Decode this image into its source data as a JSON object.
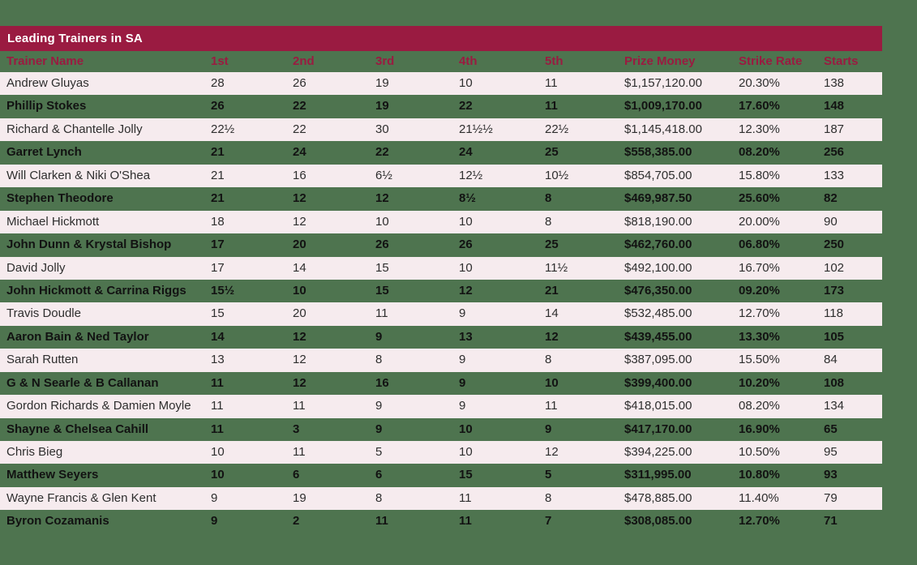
{
  "colors": {
    "page_background": "#4E744F",
    "accent_maroon": "#9A1B41",
    "row_light_pink": "#F6EBEE",
    "title_text": "#FFFFFF",
    "body_text": "#2E2E2E"
  },
  "table": {
    "title": "Leading Trainers in SA",
    "columns": [
      "Trainer Name",
      "1st",
      "2nd",
      "3rd",
      "4th",
      "5th",
      "Prize Money",
      "Strike Rate",
      "Starts"
    ],
    "rows": [
      [
        "Andrew Gluyas",
        "28",
        "26",
        "19",
        "10",
        "11",
        "$1,157,120.00",
        "20.30%",
        "138"
      ],
      [
        "Phillip Stokes",
        "26",
        "22",
        "19",
        "22",
        "11",
        "$1,009,170.00",
        "17.60%",
        "148"
      ],
      [
        "Richard & Chantelle Jolly",
        "22½",
        "22",
        "30",
        "21½½",
        "22½",
        "$1,145,418.00",
        "12.30%",
        "187"
      ],
      [
        "Garret Lynch",
        "21",
        "24",
        "22",
        "24",
        "25",
        "$558,385.00",
        "08.20%",
        "256"
      ],
      [
        "Will Clarken & Niki O'Shea",
        "21",
        "16",
        "6½",
        "12½",
        "10½",
        "$854,705.00",
        "15.80%",
        "133"
      ],
      [
        "Stephen Theodore",
        "21",
        "12",
        "12",
        "8½",
        "8",
        "$469,987.50",
        "25.60%",
        "82"
      ],
      [
        "Michael Hickmott",
        "18",
        "12",
        "10",
        "10",
        "8",
        "$818,190.00",
        "20.00%",
        "90"
      ],
      [
        "John Dunn & Krystal Bishop",
        "17",
        "20",
        "26",
        "26",
        "25",
        "$462,760.00",
        "06.80%",
        "250"
      ],
      [
        "David Jolly",
        "17",
        "14",
        "15",
        "10",
        "11½",
        "$492,100.00",
        "16.70%",
        "102"
      ],
      [
        "John Hickmott & Carrina Riggs",
        "15½",
        "10",
        "15",
        "12",
        "21",
        "$476,350.00",
        "09.20%",
        "173"
      ],
      [
        "Travis Doudle",
        "15",
        "20",
        "11",
        "9",
        "14",
        "$532,485.00",
        "12.70%",
        "118"
      ],
      [
        "Aaron Bain & Ned Taylor",
        "14",
        "12",
        "9",
        "13",
        "12",
        "$439,455.00",
        "13.30%",
        "105"
      ],
      [
        "Sarah Rutten",
        "13",
        "12",
        "8",
        "9",
        "8",
        "$387,095.00",
        "15.50%",
        "84"
      ],
      [
        "G & N Searle & B Callanan",
        "11",
        "12",
        "16",
        "9",
        "10",
        "$399,400.00",
        "10.20%",
        "108"
      ],
      [
        "Gordon Richards & Damien Moyle",
        "11",
        "11",
        "9",
        "9",
        "11",
        "$418,015.00",
        "08.20%",
        "134"
      ],
      [
        "Shayne & Chelsea Cahill",
        "11",
        "3",
        "9",
        "10",
        "9",
        "$417,170.00",
        "16.90%",
        "65"
      ],
      [
        "Chris Bieg",
        "10",
        "11",
        "5",
        "10",
        "12",
        "$394,225.00",
        "10.50%",
        "95"
      ],
      [
        "Matthew Seyers",
        "10",
        "6",
        "6",
        "15",
        "5",
        "$311,995.00",
        "10.80%",
        "93"
      ],
      [
        "Wayne Francis & Glen Kent",
        "9",
        "19",
        "8",
        "11",
        "8",
        "$478,885.00",
        "11.40%",
        "79"
      ],
      [
        "Byron Cozamanis",
        "9",
        "2",
        "11",
        "11",
        "7",
        "$308,085.00",
        "12.70%",
        "71"
      ]
    ]
  }
}
